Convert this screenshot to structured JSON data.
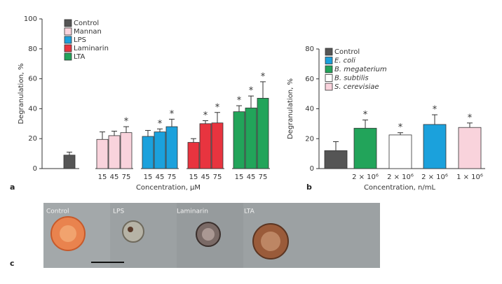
{
  "chart_data": [
    {
      "type": "bar",
      "panel": "a",
      "y_label": "Degranulation, %",
      "x_label": "Concentration, μM",
      "ylim": [
        0,
        100
      ],
      "yticks": [
        0,
        20,
        40,
        60,
        80,
        100
      ],
      "categories": [
        null,
        "15",
        "45",
        "75",
        "15",
        "45",
        "75",
        "15",
        "45",
        "75",
        "15",
        "45",
        "75"
      ],
      "series": [
        {
          "name": "Control",
          "color": "#555555",
          "values": [
            9,
            null,
            null,
            null,
            null,
            null,
            null,
            null,
            null,
            null,
            null,
            null,
            null
          ],
          "errors": [
            2,
            null,
            null,
            null,
            null,
            null,
            null,
            null,
            null,
            null,
            null,
            null,
            null
          ],
          "markers": [
            null,
            null,
            null,
            null,
            null,
            null,
            null,
            null,
            null,
            null,
            null,
            null,
            null
          ]
        },
        {
          "name": "Mannan",
          "color": "#f9d3dc",
          "values": [
            null,
            19.5,
            22,
            24,
            null,
            null,
            null,
            null,
            null,
            null,
            null,
            null,
            null
          ],
          "errors": [
            null,
            5,
            3,
            4,
            null,
            null,
            null,
            null,
            null,
            null,
            null,
            null,
            null
          ],
          "markers": [
            null,
            null,
            null,
            "*",
            null,
            null,
            null,
            null,
            null,
            null,
            null,
            null,
            null
          ]
        },
        {
          "name": "LPS",
          "color": "#1ba1dc",
          "values": [
            null,
            null,
            null,
            null,
            21.5,
            24.5,
            28,
            null,
            null,
            null,
            null,
            null,
            null
          ],
          "errors": [
            null,
            null,
            null,
            null,
            4,
            2,
            5,
            null,
            null,
            null,
            null,
            null,
            null
          ],
          "markers": [
            null,
            null,
            null,
            null,
            null,
            "*",
            "*",
            null,
            null,
            null,
            null,
            null,
            null
          ]
        },
        {
          "name": "Laminarin",
          "color": "#e8343f",
          "values": [
            null,
            null,
            null,
            null,
            null,
            null,
            null,
            17.5,
            30,
            30.5,
            null,
            null,
            null
          ],
          "errors": [
            null,
            null,
            null,
            null,
            null,
            null,
            null,
            2.5,
            2,
            7,
            null,
            null,
            null
          ],
          "markers": [
            null,
            null,
            null,
            null,
            null,
            null,
            null,
            null,
            "*",
            "*",
            null,
            null,
            null
          ]
        },
        {
          "name": "LTA",
          "color": "#22a45a",
          "values": [
            null,
            null,
            null,
            null,
            null,
            null,
            null,
            null,
            null,
            null,
            38,
            40.5,
            47
          ],
          "errors": [
            null,
            null,
            null,
            null,
            null,
            null,
            null,
            null,
            null,
            null,
            4,
            8,
            11
          ],
          "markers": [
            null,
            null,
            null,
            null,
            null,
            null,
            null,
            null,
            null,
            null,
            "*",
            "*",
            "*"
          ]
        }
      ]
    },
    {
      "type": "bar",
      "panel": "b",
      "y_label": "Degranulation, %",
      "x_label": "Concentration, n/mL",
      "ylim": [
        0,
        80
      ],
      "yticks": [
        0,
        20,
        40,
        60,
        80
      ],
      "categories": [
        null,
        "2 × 10⁶",
        "2 × 10⁶",
        "2 × 10⁶",
        "1 × 10⁶"
      ],
      "series": [
        {
          "name": "Control",
          "color": "#555555",
          "values": [
            12,
            null,
            null,
            null,
            null
          ],
          "errors": [
            6,
            null,
            null,
            null,
            null
          ],
          "markers": [
            null,
            null,
            null,
            null,
            null
          ]
        },
        {
          "name": "E. coli",
          "color": "#1ba1dc",
          "values": [
            null,
            null,
            null,
            29.5,
            null
          ],
          "errors": [
            null,
            null,
            null,
            6.5,
            null
          ],
          "markers": [
            null,
            null,
            null,
            "*",
            null
          ]
        },
        {
          "name": "B. megaterium",
          "color": "#22a45a",
          "values": [
            null,
            27,
            null,
            null,
            null
          ],
          "errors": [
            null,
            5.5,
            null,
            null,
            null
          ],
          "markers": [
            null,
            "*",
            null,
            null,
            null
          ]
        },
        {
          "name": "B. subtilis",
          "color": "#ffffff",
          "values": [
            null,
            null,
            22.5,
            null,
            null
          ],
          "errors": [
            null,
            null,
            1.5,
            null,
            null
          ],
          "markers": [
            null,
            null,
            "*",
            null,
            null
          ]
        },
        {
          "name": "S. cerevisiae",
          "color": "#f9d3dc",
          "values": [
            null,
            null,
            null,
            null,
            27.5
          ],
          "errors": [
            null,
            null,
            null,
            null,
            3
          ],
          "markers": [
            null,
            null,
            null,
            null,
            "*"
          ]
        }
      ]
    }
  ],
  "image_panel": {
    "panel": "c",
    "images": [
      "Control",
      "LPS",
      "Laminarin",
      "LTA"
    ]
  }
}
